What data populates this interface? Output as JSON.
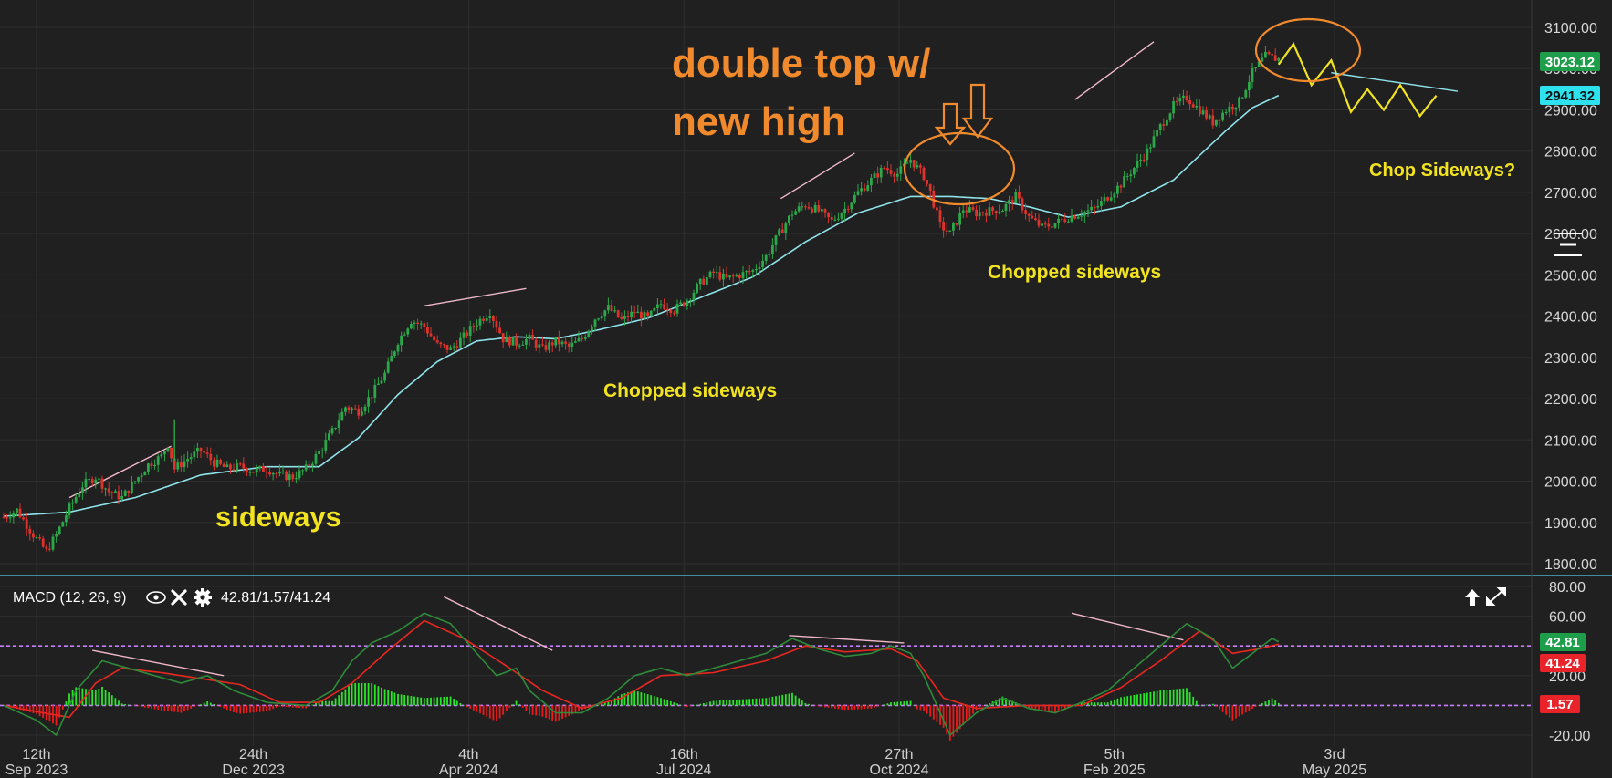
{
  "chart_data": [
    {
      "type": "candlestick",
      "name": "",
      "y_axis": {
        "ticks": [
          "1800.00",
          "1900.00",
          "2000.00",
          "2100.00",
          "2200.00",
          "2300.00",
          "2400.00",
          "2500.00",
          "2600.00",
          "2700.00",
          "2800.00",
          "2900.00",
          "3000.00",
          "3100.00"
        ],
        "ylim": [
          1780,
          3135
        ]
      },
      "x_axis": {
        "ticks": [
          {
            "day": "12th",
            "month": "Sep 2023"
          },
          {
            "day": "24th",
            "month": "Dec 2023"
          },
          {
            "day": "4th",
            "month": "Apr 2024"
          },
          {
            "day": "16th",
            "month": "Jul 2024"
          },
          {
            "day": "27th",
            "month": "Oct 2024"
          },
          {
            "day": "5th",
            "month": "Feb 2025"
          },
          {
            "day": "3rd",
            "month": "May 2025"
          }
        ]
      },
      "price_path": [
        {
          "i": 0,
          "v": 1912
        },
        {
          "i": 8,
          "v": 1930
        },
        {
          "i": 18,
          "v": 1870
        },
        {
          "i": 26,
          "v": 1830
        },
        {
          "i": 32,
          "v": 1870
        },
        {
          "i": 40,
          "v": 1935
        },
        {
          "i": 48,
          "v": 1990
        },
        {
          "i": 56,
          "v": 2010
        },
        {
          "i": 64,
          "v": 1975
        },
        {
          "i": 72,
          "v": 1960
        },
        {
          "i": 80,
          "v": 2000
        },
        {
          "i": 88,
          "v": 2040
        },
        {
          "i": 96,
          "v": 2060
        },
        {
          "i": 100,
          "v": 2090
        },
        {
          "i": 104,
          "v": 2030
        },
        {
          "i": 112,
          "v": 2055
        },
        {
          "i": 120,
          "v": 2075
        },
        {
          "i": 128,
          "v": 2045
        },
        {
          "i": 136,
          "v": 2030
        },
        {
          "i": 144,
          "v": 2035
        },
        {
          "i": 152,
          "v": 2025
        },
        {
          "i": 160,
          "v": 2030
        },
        {
          "i": 168,
          "v": 2015
        },
        {
          "i": 176,
          "v": 2010
        },
        {
          "i": 184,
          "v": 2030
        },
        {
          "i": 192,
          "v": 2070
        },
        {
          "i": 200,
          "v": 2120
        },
        {
          "i": 208,
          "v": 2180
        },
        {
          "i": 216,
          "v": 2170
        },
        {
          "i": 224,
          "v": 2210
        },
        {
          "i": 232,
          "v": 2260
        },
        {
          "i": 240,
          "v": 2340
        },
        {
          "i": 248,
          "v": 2390
        },
        {
          "i": 256,
          "v": 2375
        },
        {
          "i": 264,
          "v": 2330
        },
        {
          "i": 272,
          "v": 2320
        },
        {
          "i": 280,
          "v": 2350
        },
        {
          "i": 288,
          "v": 2385
        },
        {
          "i": 296,
          "v": 2410
        },
        {
          "i": 304,
          "v": 2345
        },
        {
          "i": 312,
          "v": 2335
        },
        {
          "i": 320,
          "v": 2345
        },
        {
          "i": 328,
          "v": 2320
        },
        {
          "i": 336,
          "v": 2340
        },
        {
          "i": 344,
          "v": 2325
        },
        {
          "i": 352,
          "v": 2345
        },
        {
          "i": 360,
          "v": 2395
        },
        {
          "i": 368,
          "v": 2420
        },
        {
          "i": 376,
          "v": 2390
        },
        {
          "i": 384,
          "v": 2410
        },
        {
          "i": 392,
          "v": 2395
        },
        {
          "i": 400,
          "v": 2430
        },
        {
          "i": 408,
          "v": 2415
        },
        {
          "i": 416,
          "v": 2440
        },
        {
          "i": 424,
          "v": 2480
        },
        {
          "i": 432,
          "v": 2505
        },
        {
          "i": 440,
          "v": 2490
        },
        {
          "i": 448,
          "v": 2500
        },
        {
          "i": 456,
          "v": 2510
        },
        {
          "i": 464,
          "v": 2545
        },
        {
          "i": 472,
          "v": 2600
        },
        {
          "i": 480,
          "v": 2650
        },
        {
          "i": 488,
          "v": 2670
        },
        {
          "i": 496,
          "v": 2655
        },
        {
          "i": 504,
          "v": 2630
        },
        {
          "i": 512,
          "v": 2660
        },
        {
          "i": 520,
          "v": 2700
        },
        {
          "i": 528,
          "v": 2730
        },
        {
          "i": 536,
          "v": 2760
        },
        {
          "i": 544,
          "v": 2745
        },
        {
          "i": 552,
          "v": 2780
        },
        {
          "i": 560,
          "v": 2740
        },
        {
          "i": 564,
          "v": 2700
        },
        {
          "i": 570,
          "v": 2620
        },
        {
          "i": 576,
          "v": 2600
        },
        {
          "i": 584,
          "v": 2660
        },
        {
          "i": 592,
          "v": 2650
        },
        {
          "i": 600,
          "v": 2655
        },
        {
          "i": 608,
          "v": 2660
        },
        {
          "i": 616,
          "v": 2690
        },
        {
          "i": 624,
          "v": 2640
        },
        {
          "i": 632,
          "v": 2615
        },
        {
          "i": 640,
          "v": 2625
        },
        {
          "i": 648,
          "v": 2640
        },
        {
          "i": 656,
          "v": 2650
        },
        {
          "i": 664,
          "v": 2660
        },
        {
          "i": 672,
          "v": 2690
        },
        {
          "i": 680,
          "v": 2720
        },
        {
          "i": 688,
          "v": 2760
        },
        {
          "i": 696,
          "v": 2800
        },
        {
          "i": 704,
          "v": 2860
        },
        {
          "i": 712,
          "v": 2910
        },
        {
          "i": 720,
          "v": 2930
        },
        {
          "i": 728,
          "v": 2900
        },
        {
          "i": 736,
          "v": 2870
        },
        {
          "i": 744,
          "v": 2900
        },
        {
          "i": 752,
          "v": 2920
        },
        {
          "i": 760,
          "v": 2990
        },
        {
          "i": 768,
          "v": 3030
        },
        {
          "i": 776,
          "v": 3023
        }
      ],
      "moving_average": [
        {
          "i": 0,
          "v": 1915
        },
        {
          "i": 40,
          "v": 1925
        },
        {
          "i": 80,
          "v": 1960
        },
        {
          "i": 120,
          "v": 2015
        },
        {
          "i": 160,
          "v": 2035
        },
        {
          "i": 192,
          "v": 2035
        },
        {
          "i": 216,
          "v": 2105
        },
        {
          "i": 240,
          "v": 2210
        },
        {
          "i": 264,
          "v": 2290
        },
        {
          "i": 288,
          "v": 2340
        },
        {
          "i": 312,
          "v": 2350
        },
        {
          "i": 336,
          "v": 2345
        },
        {
          "i": 360,
          "v": 2365
        },
        {
          "i": 392,
          "v": 2395
        },
        {
          "i": 424,
          "v": 2445
        },
        {
          "i": 456,
          "v": 2495
        },
        {
          "i": 488,
          "v": 2580
        },
        {
          "i": 520,
          "v": 2650
        },
        {
          "i": 552,
          "v": 2690
        },
        {
          "i": 576,
          "v": 2690
        },
        {
          "i": 600,
          "v": 2685
        },
        {
          "i": 624,
          "v": 2665
        },
        {
          "i": 648,
          "v": 2640
        },
        {
          "i": 680,
          "v": 2665
        },
        {
          "i": 712,
          "v": 2730
        },
        {
          "i": 744,
          "v": 2850
        },
        {
          "i": 760,
          "v": 2905
        },
        {
          "i": 776,
          "v": 2935
        }
      ],
      "last_price": "3023.12",
      "ma_value": "2941.32",
      "projection_zigzag": [
        {
          "i": 776,
          "v": 3010
        },
        {
          "i": 785,
          "v": 3060
        },
        {
          "i": 796,
          "v": 2960
        },
        {
          "i": 808,
          "v": 3020
        },
        {
          "i": 820,
          "v": 2895
        },
        {
          "i": 830,
          "v": 2950
        },
        {
          "i": 840,
          "v": 2900
        },
        {
          "i": 850,
          "v": 2960
        },
        {
          "i": 862,
          "v": 2885
        },
        {
          "i": 872,
          "v": 2935
        }
      ],
      "projection_line": [
        {
          "i": 808,
          "v": 2990
        },
        {
          "i": 885,
          "v": 2945
        }
      ]
    },
    {
      "type": "macd",
      "title": "MACD (12, 26, 9)",
      "values_text": "42.81/1.57/41.24",
      "y_axis": {
        "ticks": [
          "80.00",
          "60.00",
          "40.00",
          "20.00",
          "0.00",
          "-20.00"
        ],
        "ylim": [
          -22,
          88
        ]
      },
      "macd_value": "42.81",
      "signal_value": "41.24",
      "histogram_value": "1.57",
      "reference_levels": [
        0,
        40
      ],
      "macd_path": [
        {
          "i": 0,
          "v": 0
        },
        {
          "i": 20,
          "v": -10
        },
        {
          "i": 32,
          "v": -20
        },
        {
          "i": 44,
          "v": 10
        },
        {
          "i": 60,
          "v": 30
        },
        {
          "i": 76,
          "v": 25
        },
        {
          "i": 92,
          "v": 20
        },
        {
          "i": 108,
          "v": 15
        },
        {
          "i": 124,
          "v": 20
        },
        {
          "i": 140,
          "v": 10
        },
        {
          "i": 160,
          "v": 2
        },
        {
          "i": 184,
          "v": 0
        },
        {
          "i": 200,
          "v": 10
        },
        {
          "i": 212,
          "v": 30
        },
        {
          "i": 224,
          "v": 42
        },
        {
          "i": 240,
          "v": 50
        },
        {
          "i": 256,
          "v": 62
        },
        {
          "i": 272,
          "v": 55
        },
        {
          "i": 288,
          "v": 35
        },
        {
          "i": 300,
          "v": 20
        },
        {
          "i": 312,
          "v": 25
        },
        {
          "i": 320,
          "v": 10
        },
        {
          "i": 336,
          "v": -5
        },
        {
          "i": 352,
          "v": -5
        },
        {
          "i": 368,
          "v": 5
        },
        {
          "i": 384,
          "v": 20
        },
        {
          "i": 400,
          "v": 25
        },
        {
          "i": 416,
          "v": 20
        },
        {
          "i": 432,
          "v": 25
        },
        {
          "i": 448,
          "v": 30
        },
        {
          "i": 464,
          "v": 35
        },
        {
          "i": 480,
          "v": 45
        },
        {
          "i": 496,
          "v": 38
        },
        {
          "i": 512,
          "v": 33
        },
        {
          "i": 528,
          "v": 35
        },
        {
          "i": 540,
          "v": 40
        },
        {
          "i": 552,
          "v": 35
        },
        {
          "i": 560,
          "v": 20
        },
        {
          "i": 568,
          "v": 0
        },
        {
          "i": 576,
          "v": -20
        },
        {
          "i": 592,
          "v": -5
        },
        {
          "i": 608,
          "v": 5
        },
        {
          "i": 624,
          "v": -2
        },
        {
          "i": 640,
          "v": -5
        },
        {
          "i": 656,
          "v": 2
        },
        {
          "i": 672,
          "v": 10
        },
        {
          "i": 688,
          "v": 25
        },
        {
          "i": 704,
          "v": 40
        },
        {
          "i": 720,
          "v": 55
        },
        {
          "i": 736,
          "v": 45
        },
        {
          "i": 748,
          "v": 25
        },
        {
          "i": 760,
          "v": 35
        },
        {
          "i": 772,
          "v": 45
        },
        {
          "i": 776,
          "v": 42.81
        }
      ],
      "signal_path": [
        {
          "i": 0,
          "v": 0
        },
        {
          "i": 24,
          "v": -5
        },
        {
          "i": 40,
          "v": -8
        },
        {
          "i": 56,
          "v": 15
        },
        {
          "i": 72,
          "v": 25
        },
        {
          "i": 96,
          "v": 22
        },
        {
          "i": 120,
          "v": 18
        },
        {
          "i": 144,
          "v": 14
        },
        {
          "i": 168,
          "v": 2
        },
        {
          "i": 192,
          "v": 2
        },
        {
          "i": 212,
          "v": 15
        },
        {
          "i": 232,
          "v": 35
        },
        {
          "i": 256,
          "v": 57
        },
        {
          "i": 280,
          "v": 45
        },
        {
          "i": 304,
          "v": 28
        },
        {
          "i": 328,
          "v": 10
        },
        {
          "i": 352,
          "v": -2
        },
        {
          "i": 376,
          "v": 5
        },
        {
          "i": 400,
          "v": 20
        },
        {
          "i": 432,
          "v": 22
        },
        {
          "i": 464,
          "v": 30
        },
        {
          "i": 488,
          "v": 40
        },
        {
          "i": 512,
          "v": 36
        },
        {
          "i": 540,
          "v": 38
        },
        {
          "i": 556,
          "v": 30
        },
        {
          "i": 572,
          "v": 5
        },
        {
          "i": 592,
          "v": -2
        },
        {
          "i": 624,
          "v": 0
        },
        {
          "i": 656,
          "v": 0
        },
        {
          "i": 680,
          "v": 12
        },
        {
          "i": 704,
          "v": 30
        },
        {
          "i": 728,
          "v": 50
        },
        {
          "i": 748,
          "v": 35
        },
        {
          "i": 764,
          "v": 38
        },
        {
          "i": 776,
          "v": 41.24
        }
      ]
    }
  ],
  "annotations": {
    "double_top": [
      "double top w/",
      "new high"
    ],
    "sideways": "sideways",
    "chopped_1": "Chopped sideways",
    "chopped_2": "Chopped sideways",
    "chop_question": "Chop Sideways?"
  },
  "colors": {
    "background": "#202020",
    "up_candle": "#2aa84a",
    "down_candle": "#e0322d",
    "moving_average": "#8fe3ea",
    "macd_line": "#2e8b3a",
    "signal_line": "#e8271f",
    "hist_up": "#29e629",
    "hist_down": "#ee1a1a",
    "annotation_orange": "#f08a2c",
    "annotation_yellow": "#f2e320",
    "trendline": "#f0b8c8",
    "divider": "#4fb0c6",
    "ref_line": "#c77dff",
    "badge_price": "#1e9e4a",
    "badge_ma": "#2de1ee",
    "badge_red": "#e8232a"
  },
  "icons": [
    "eye-icon",
    "close-icon",
    "gear-icon",
    "arrow-up-icon",
    "expand-icon"
  ]
}
